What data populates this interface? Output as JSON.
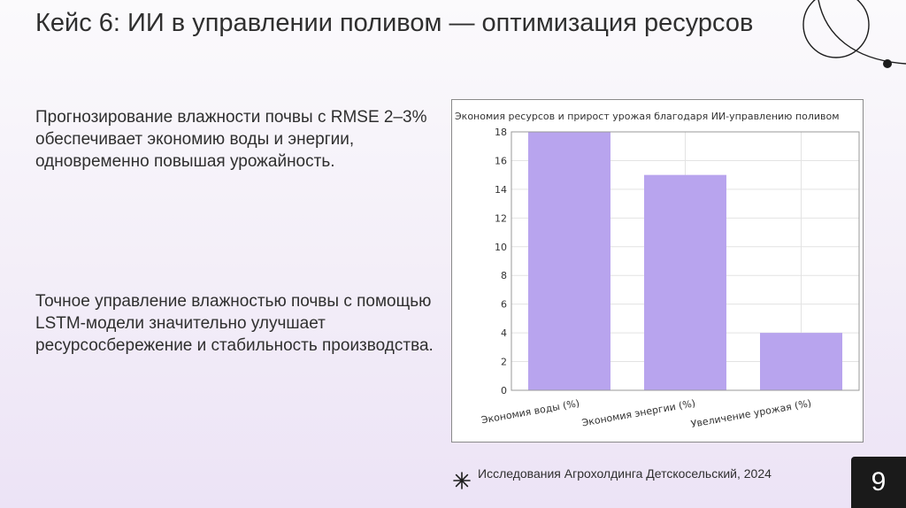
{
  "slide": {
    "title": "Кейс 6: ИИ в управлении поливом — оптимизация ресурсов",
    "paragraph_1": "Прогнозирование влажности почвы с RMSE 2–3% обеспечивает экономию воды и энергии, одновременно повышая урожайность.",
    "paragraph_2": "Точное управление влажностью почвы с помощью LSTM-модели значительно улучшает ресурсосбережение и стабильность производства.",
    "footer": "Исследования Агрохолдинга Детскосельский, 2024",
    "page_number": "9"
  },
  "icons": {
    "decoration": "circle-line-decoration-icon",
    "footer": "sparkle-star-icon"
  },
  "colors": {
    "bar": "#b8a4ee",
    "page_number_bg": "#1a1a1a"
  },
  "chart_data": {
    "type": "bar",
    "title": "Экономия ресурсов и прирост урожая благодаря ИИ-управлению поливом",
    "categories": [
      "Экономия воды (%)",
      "Экономия энергии (%)",
      "Увеличение урожая (%)"
    ],
    "values": [
      18,
      15,
      4
    ],
    "ylim": [
      0,
      18
    ],
    "yticks": [
      0,
      2,
      4,
      6,
      8,
      10,
      12,
      14,
      16,
      18
    ],
    "grid": true,
    "xlabel": "",
    "ylabel": ""
  }
}
